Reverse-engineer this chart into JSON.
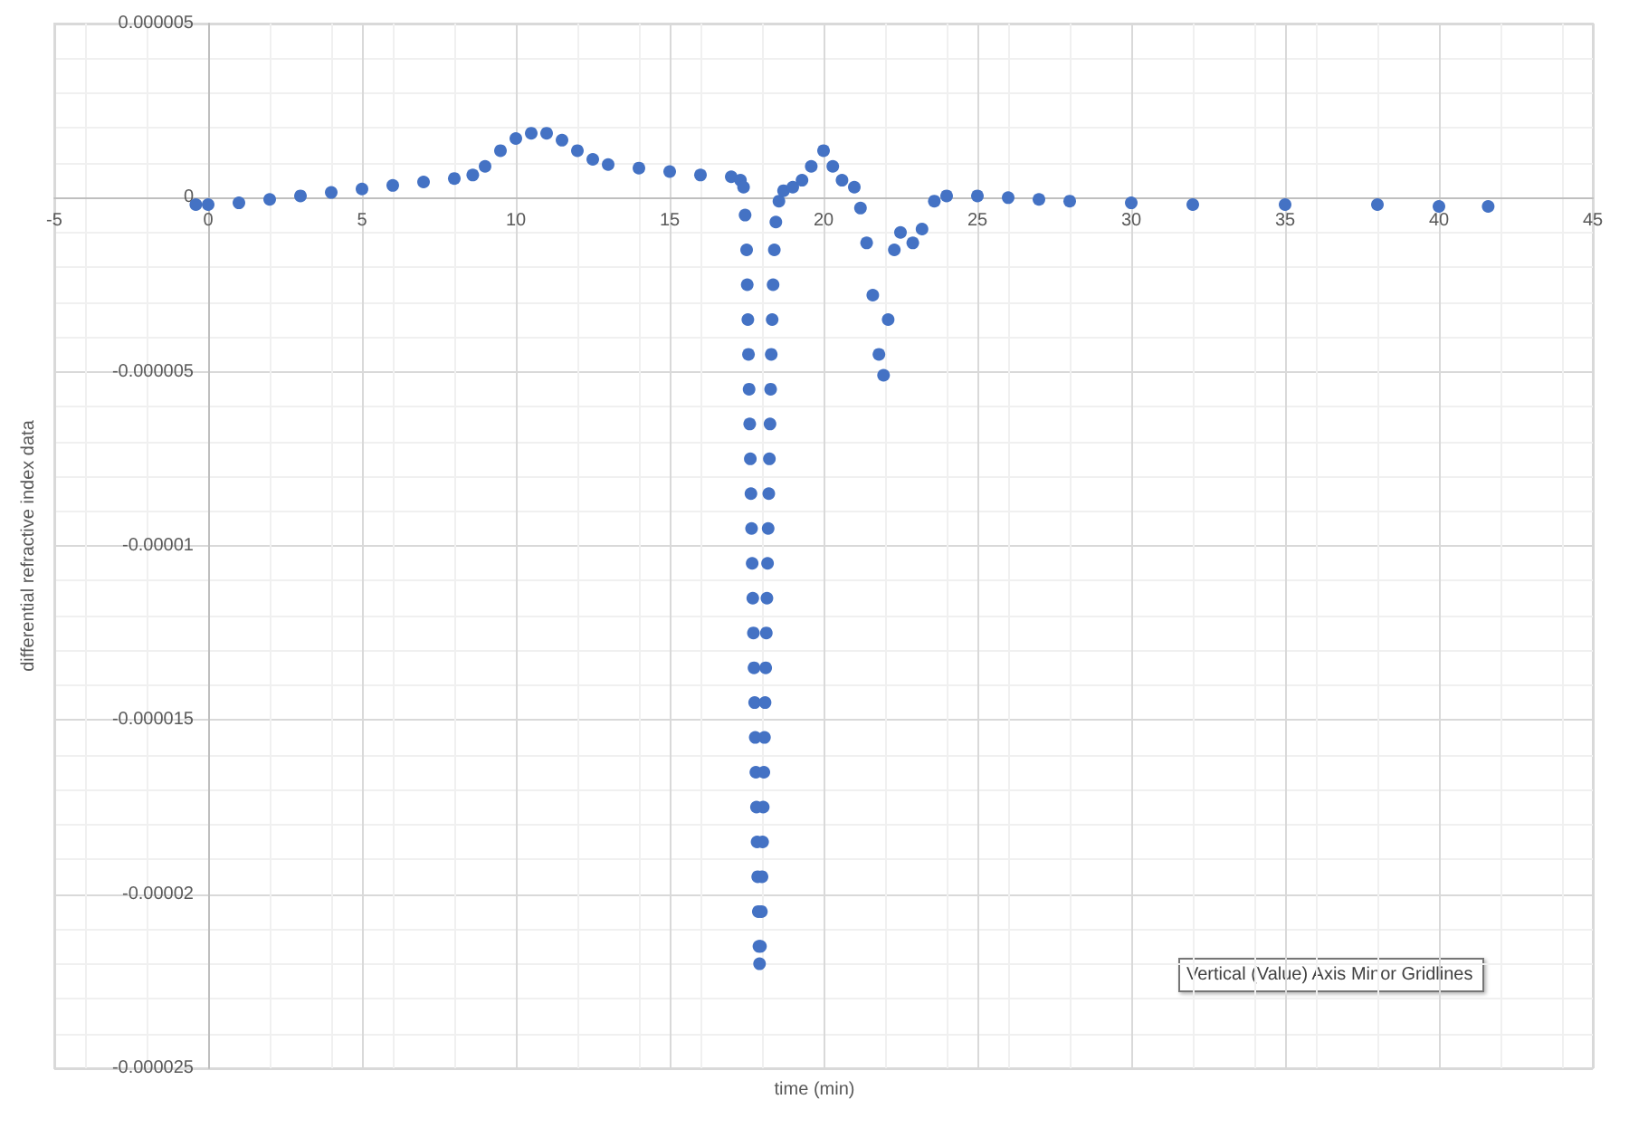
{
  "chart_data": {
    "type": "scatter",
    "xlabel": "time (min)",
    "ylabel": "differential refractive index data",
    "annotations": [
      "Vertical (Value) Axis Minor Gridlines"
    ],
    "x": [
      -0.4,
      0,
      1,
      2,
      3,
      4,
      5,
      6,
      7,
      8,
      8.6,
      9,
      9.5,
      10,
      10.5,
      11,
      11.5,
      12,
      12.5,
      13,
      14,
      15,
      16,
      17,
      17.3,
      17.4,
      17.45,
      17.5,
      17.52,
      17.54,
      17.56,
      17.58,
      17.6,
      17.62,
      17.64,
      17.66,
      17.68,
      17.7,
      17.72,
      17.74,
      17.76,
      17.78,
      17.8,
      17.82,
      17.84,
      17.86,
      17.88,
      17.9,
      17.92,
      17.95,
      17.98,
      18,
      18.02,
      18.04,
      18.06,
      18.08,
      18.1,
      18.12,
      18.14,
      18.16,
      18.18,
      18.2,
      18.22,
      18.24,
      18.26,
      18.28,
      18.3,
      18.33,
      18.36,
      18.4,
      18.45,
      18.55,
      18.7,
      19,
      19.3,
      19.6,
      20,
      20.3,
      20.6,
      21,
      21.2,
      21.4,
      21.6,
      21.8,
      21.95,
      22.1,
      22.3,
      22.5,
      22.9,
      23.2,
      23.6,
      24,
      25,
      26,
      27,
      28,
      30,
      32,
      35,
      38,
      40,
      41.6
    ],
    "series": [
      {
        "color": "#4472c4",
        "values": [
          -2e-07,
          -2e-07,
          -1.5e-07,
          -5e-08,
          5e-08,
          1.5e-07,
          2.5e-07,
          3.5e-07,
          4.5e-07,
          5.5e-07,
          6.5e-07,
          9e-07,
          1.35e-06,
          1.7e-06,
          1.85e-06,
          1.85e-06,
          1.65e-06,
          1.35e-06,
          1.1e-06,
          9.5e-07,
          8.5e-07,
          7.5e-07,
          6.5e-07,
          6e-07,
          5e-07,
          3e-07,
          -5e-07,
          -1.5e-06,
          -2.5e-06,
          -3.5e-06,
          -4.5e-06,
          -5.5e-06,
          -6.5e-06,
          -7.5e-06,
          -8.5e-06,
          -9.5e-06,
          -1.05e-05,
          -1.15e-05,
          -1.25e-05,
          -1.35e-05,
          -1.45e-05,
          -1.55e-05,
          -1.65e-05,
          -1.75e-05,
          -1.85e-05,
          -1.95e-05,
          -2.05e-05,
          -2.15e-05,
          -2.2e-05,
          -2.15e-05,
          -2.05e-05,
          -1.95e-05,
          -1.85e-05,
          -1.75e-05,
          -1.65e-05,
          -1.55e-05,
          -1.45e-05,
          -1.35e-05,
          -1.25e-05,
          -1.15e-05,
          -1.05e-05,
          -9.5e-06,
          -8.5e-06,
          -7.5e-06,
          -6.5e-06,
          -5.5e-06,
          -4.5e-06,
          -3.5e-06,
          -2.5e-06,
          -1.5e-06,
          -7e-07,
          -1e-07,
          2e-07,
          3e-07,
          5e-07,
          9e-07,
          1.35e-06,
          9e-07,
          5e-07,
          3e-07,
          -3e-07,
          -1.3e-06,
          -2.8e-06,
          -4.5e-06,
          -5.1e-06,
          -3.5e-06,
          -1.5e-06,
          -1e-06,
          -1.3e-06,
          -9e-07,
          -1e-07,
          5e-08,
          5e-08,
          0,
          -5e-08,
          -1e-07,
          -1.5e-07,
          -2e-07,
          -2e-07,
          -2e-07,
          -2.5e-07,
          -2.5e-07
        ]
      }
    ],
    "xlim": [
      -5,
      45
    ],
    "xticks": [
      -5,
      0,
      5,
      10,
      15,
      20,
      25,
      30,
      35,
      40,
      45
    ],
    "ylim": [
      -2.5e-05,
      5e-06
    ],
    "yticks": [
      {
        "value": 5e-06,
        "label": "0.000005"
      },
      {
        "value": 0,
        "label": "0"
      },
      {
        "value": -5e-06,
        "label": "-0.000005"
      },
      {
        "value": -1e-05,
        "label": "-0.00001"
      },
      {
        "value": -1.5e-05,
        "label": "-0.000015"
      },
      {
        "value": -2e-05,
        "label": "-0.00002"
      },
      {
        "value": -2.5e-05,
        "label": "-0.000025"
      }
    ],
    "grid": true,
    "marker": "circle"
  }
}
